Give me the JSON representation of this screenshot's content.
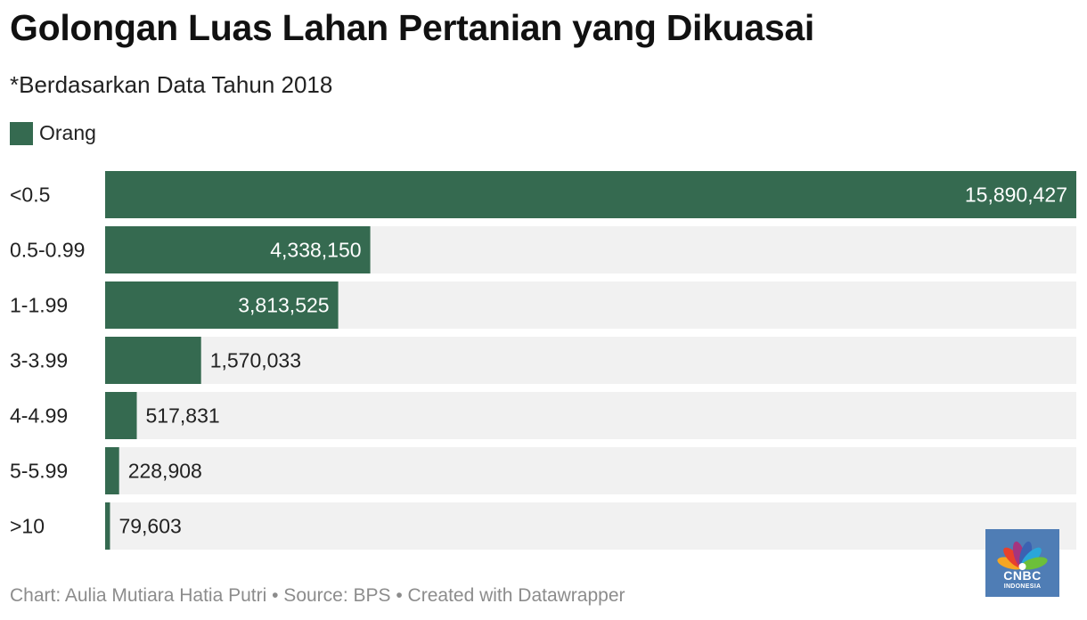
{
  "title": "Golongan Luas Lahan Pertanian yang Dikuasai",
  "subtitle": "*Berdasarkan Data Tahun 2018",
  "legend": {
    "label": "Orang",
    "color": "#356a50"
  },
  "footer": "Chart: Aulia Mutiara Hatia Putri • Source: BPS • Created with Datawrapper",
  "logo": {
    "main": "CNBC",
    "sub": "INDONESIA",
    "background": "#4f7db5"
  },
  "chart_data": {
    "type": "bar",
    "orientation": "horizontal",
    "title": "Golongan Luas Lahan Pertanian yang Dikuasai",
    "subtitle": "*Berdasarkan Data Tahun 2018",
    "categories": [
      "<0.5",
      "0.5-0.99",
      "1-1.99",
      "3-3.99",
      "4-4.99",
      "5-5.99",
      ">10"
    ],
    "series": [
      {
        "name": "Orang",
        "values": [
          15890427,
          4338150,
          3813525,
          1570033,
          517831,
          228908,
          79603
        ],
        "value_labels": [
          "15,890,427",
          "4,338,150",
          "3,813,525",
          "1,570,033",
          "517,831",
          "228,908",
          "79,603"
        ],
        "color": "#356a50"
      }
    ],
    "xlim": [
      0,
      15890427
    ],
    "grid": false,
    "legend_position": "top-left",
    "track_color": "#f1f1f1"
  }
}
